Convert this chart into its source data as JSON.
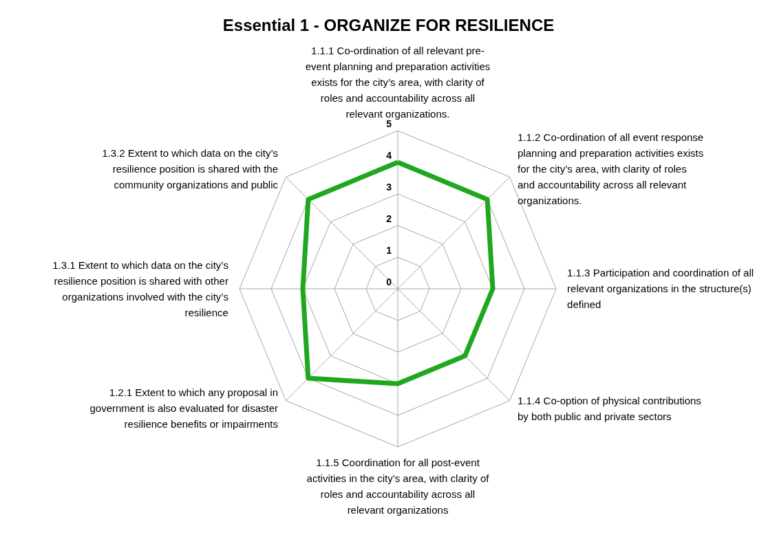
{
  "chart_data": {
    "type": "radar",
    "title": "Essential 1 -  ORGANIZE FOR RESILIENCE",
    "categories": [
      "1.1.1 Co-ordination of all relevant pre-\nevent planning and preparation activities\nexists for the city’s area, with clarity of\nroles and accountability across all\nrelevant organizations.",
      "1.1.2 Co-ordination of all event response\nplanning and preparation activities exists\nfor the city’s area, with clarity of roles\nand accountability across all relevant\norganizations.",
      "1.1.3 Participation and coordination of all\nrelevant organizations in the structure(s)\ndefined",
      "1.1.4 Co-option of physical contributions\nby both public and private sectors",
      "1.1.5 Coordination for all post-event\nactivities in the city’s area, with clarity of\nroles and accountability across all\nrelevant organizations",
      "1.2.1 Extent to which any proposal in\ngovernment is also evaluated for disaster\nresilience benefits or impairments",
      "1.3.1 Extent to which data on the city’s\nresilience position is shared with other\norganizations involved with the city’s\nresilience",
      "1.3.2 Extent to which data on the city’s\nresilience position is shared with the\ncommunity organizations and public"
    ],
    "series": [
      {
        "color": "#1fa81f",
        "values": [
          4,
          4,
          3,
          3,
          3,
          4,
          3,
          4
        ]
      }
    ],
    "ylim": [
      0,
      5
    ],
    "yticks": [
      0,
      1,
      2,
      3,
      4,
      5
    ],
    "grid": true
  }
}
